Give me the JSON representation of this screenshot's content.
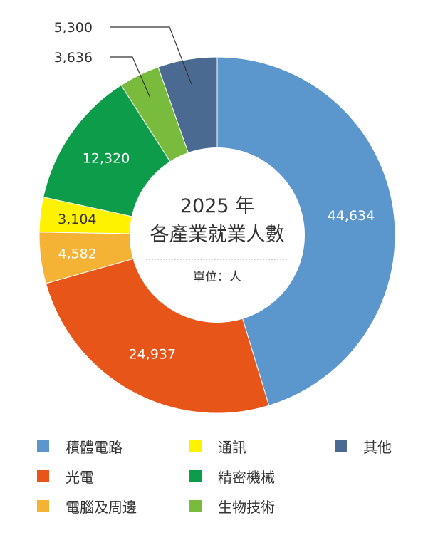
{
  "chart_data": {
    "type": "pie",
    "title": "2025 年",
    "subtitle": "各產業就業人數",
    "unit_note": "單位：人",
    "legend_position": "bottom",
    "slices": [
      {
        "name": "積體電路",
        "value": 44634,
        "label": "44,634",
        "color": "#5b96cd"
      },
      {
        "name": "光電",
        "value": 24937,
        "label": "24,937",
        "color": "#e75519"
      },
      {
        "name": "電腦及周邊",
        "value": 4582,
        "label": "4,582",
        "color": "#f5b335"
      },
      {
        "name": "通訊",
        "value": 3104,
        "label": "3,104",
        "color": "#fff200"
      },
      {
        "name": "精密機械",
        "value": 12320,
        "label": "12,320",
        "color": "#0d9d4a"
      },
      {
        "name": "生物技術",
        "value": 3636,
        "label": "3,636",
        "color": "#79bb3c"
      },
      {
        "name": "其他",
        "value": 5300,
        "label": "5,300",
        "color": "#4b6a92"
      }
    ],
    "legend": [
      {
        "name": "積體電路",
        "color": "#5b96cd"
      },
      {
        "name": "通訊",
        "color": "#fff200"
      },
      {
        "name": "其他",
        "color": "#4b6a92"
      },
      {
        "name": "光電",
        "color": "#e75519"
      },
      {
        "name": "精密機械",
        "color": "#0d9d4a"
      },
      {
        "name": "電腦及周邊",
        "color": "#f5b335"
      },
      {
        "name": "生物技術",
        "color": "#79bb3c"
      }
    ]
  }
}
